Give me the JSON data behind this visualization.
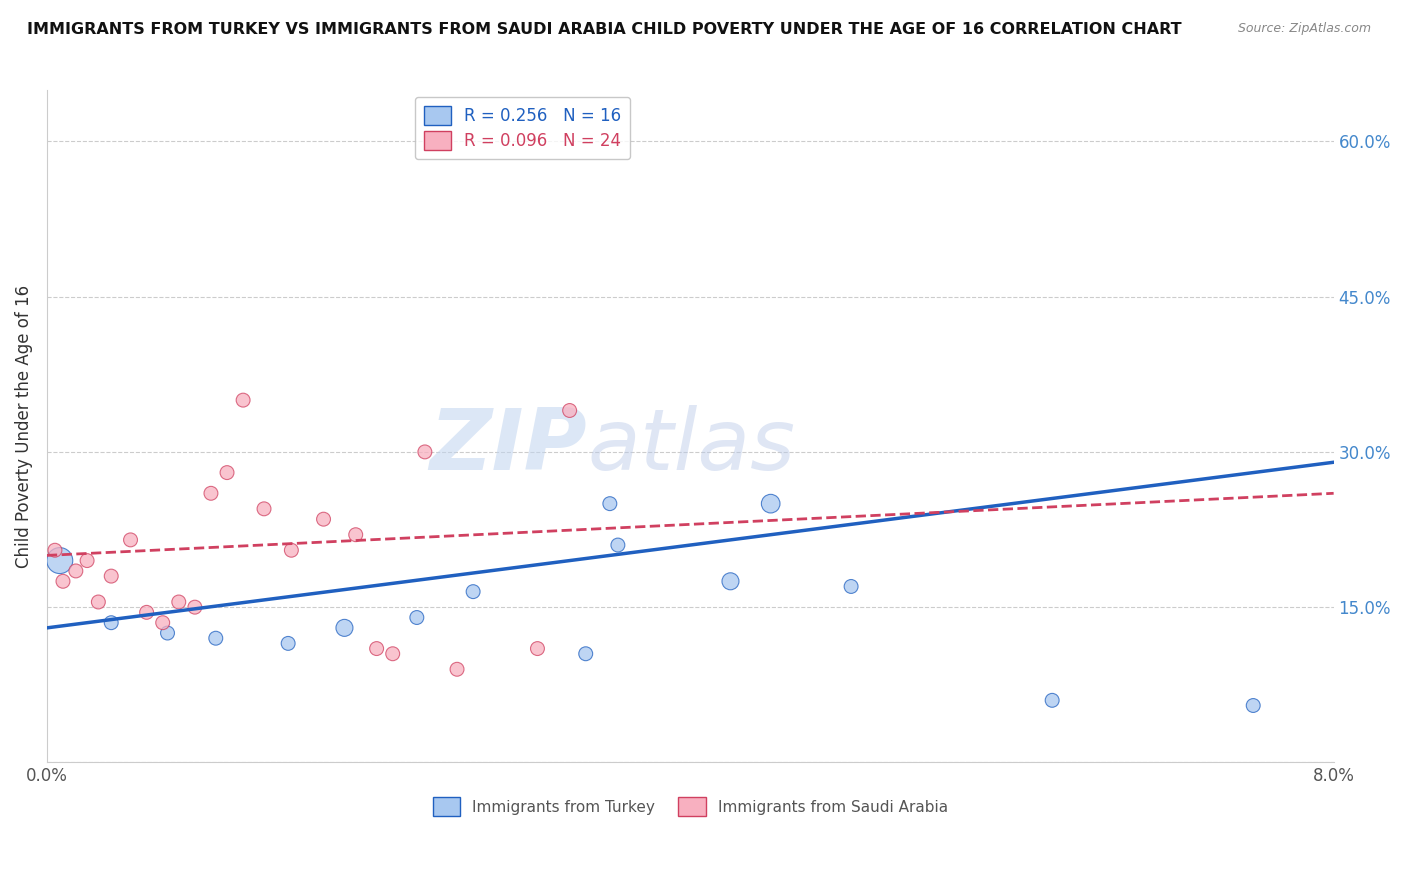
{
  "title": "IMMIGRANTS FROM TURKEY VS IMMIGRANTS FROM SAUDI ARABIA CHILD POVERTY UNDER THE AGE OF 16 CORRELATION CHART",
  "source": "Source: ZipAtlas.com",
  "ylabel": "Child Poverty Under the Age of 16",
  "legend_turkey": "Immigrants from Turkey",
  "legend_saudi": "Immigrants from Saudi Arabia",
  "r_turkey": 0.256,
  "n_turkey": 16,
  "r_saudi": 0.096,
  "n_saudi": 24,
  "color_turkey": "#a8c8f0",
  "color_saudi": "#f8b0c0",
  "color_line_turkey": "#2060c0",
  "color_line_saudi": "#d04060",
  "xlim": [
    0.0,
    8.0
  ],
  "ylim": [
    0.0,
    65.0
  ],
  "xticks": [
    0.0,
    1.0,
    2.0,
    3.0,
    4.0,
    5.0,
    6.0,
    7.0,
    8.0
  ],
  "xtick_labels": [
    "0.0%",
    "",
    "",
    "",
    "",
    "",
    "",
    "",
    "8.0%"
  ],
  "ytick_right": [
    0.0,
    15.0,
    30.0,
    45.0,
    60.0
  ],
  "ytick_right_labels": [
    "",
    "15.0%",
    "30.0%",
    "45.0%",
    "60.0%"
  ],
  "turkey_x": [
    0.08,
    0.4,
    0.75,
    1.05,
    1.5,
    1.85,
    2.3,
    2.65,
    3.35,
    3.5,
    3.55,
    4.25,
    4.5,
    5.0,
    6.25,
    7.5
  ],
  "turkey_y": [
    19.5,
    13.5,
    12.5,
    12.0,
    11.5,
    13.0,
    14.0,
    16.5,
    10.5,
    25.0,
    21.0,
    17.5,
    25.0,
    17.0,
    6.0,
    5.5
  ],
  "turkey_size": [
    350,
    100,
    100,
    100,
    100,
    150,
    100,
    100,
    100,
    100,
    100,
    150,
    180,
    100,
    100,
    100
  ],
  "saudi_x": [
    0.05,
    0.1,
    0.18,
    0.25,
    0.32,
    0.4,
    0.52,
    0.62,
    0.72,
    0.82,
    0.92,
    1.02,
    1.12,
    1.22,
    1.35,
    1.52,
    1.72,
    1.92,
    2.05,
    2.15,
    2.35,
    2.55,
    3.05,
    3.25
  ],
  "saudi_y": [
    20.5,
    17.5,
    18.5,
    19.5,
    15.5,
    18.0,
    21.5,
    14.5,
    13.5,
    15.5,
    15.0,
    26.0,
    28.0,
    35.0,
    24.5,
    20.5,
    23.5,
    22.0,
    11.0,
    10.5,
    30.0,
    9.0,
    11.0,
    34.0
  ],
  "saudi_size": [
    100,
    100,
    100,
    100,
    100,
    100,
    100,
    100,
    100,
    100,
    100,
    100,
    100,
    100,
    100,
    100,
    100,
    100,
    100,
    100,
    100,
    100,
    100,
    100
  ],
  "watermark_zip": "ZIP",
  "watermark_atlas": "atlas",
  "background_color": "#ffffff",
  "trendline_turkey_x0": 0.0,
  "trendline_turkey_y0": 13.0,
  "trendline_turkey_x1": 8.0,
  "trendline_turkey_y1": 29.0,
  "trendline_saudi_x0": 0.0,
  "trendline_saudi_y0": 20.0,
  "trendline_saudi_x1": 8.0,
  "trendline_saudi_y1": 26.0
}
